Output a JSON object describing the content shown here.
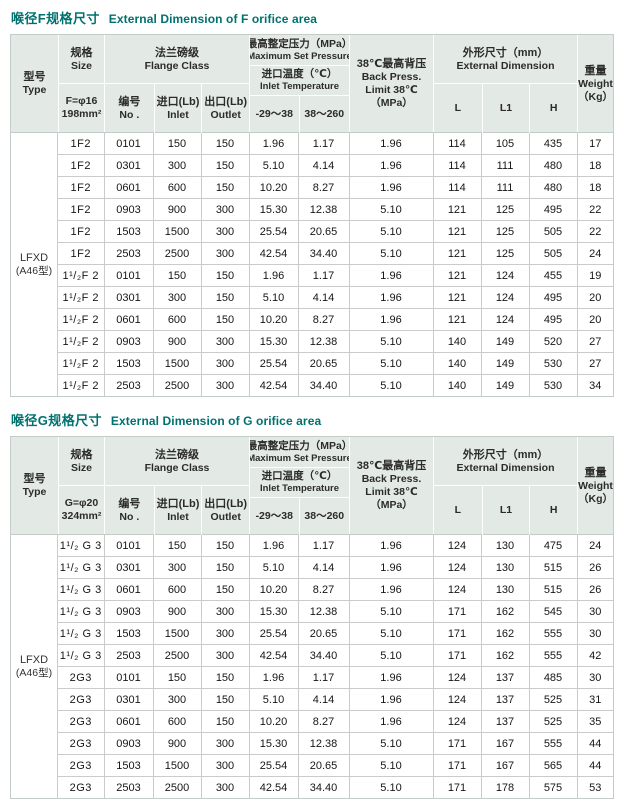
{
  "colors": {
    "title_teal": "#00716f",
    "header_bg": "#e3e9e5",
    "border_light": "#c3ccc6",
    "border_data": "#cbcbcb",
    "text": "#161616"
  },
  "tables": [
    {
      "title_zh": "喉径F规格尺寸",
      "title_en": "External Dimension of F orifice area",
      "header": {
        "type_zh": "型号",
        "type_en": "Type",
        "size_zh": "规格",
        "size_en": "Size",
        "size_spec_1": "F=φ16",
        "size_spec_2": "198mm²",
        "flange_zh": "法兰磅级",
        "flange_en": "Flange Class",
        "no_zh": "编号",
        "no_en": "No .",
        "inlet_zh": "进口(Lb)",
        "inlet_en": "Inlet",
        "outlet_zh": "出口(Lb)",
        "outlet_en": "Outlet",
        "max_set_zh": "最高整定压力（MPa）",
        "max_set_en": "Maximum Set Pressure",
        "inlet_temp_zh": "进口温度（℃）",
        "inlet_temp_en": "Inlet Temperature",
        "temp_range_1": "-29～38",
        "temp_range_2": "38～260",
        "back_press_l1": "38℃最高背压",
        "back_press_l2": "Back Press.",
        "back_press_l3": "Limit 38℃",
        "back_press_l4": "（MPa）",
        "ext_dim_zh": "外形尺寸（mm）",
        "ext_dim_en": "External Dimension",
        "col_l": "L",
        "col_l1": "L1",
        "col_h": "H",
        "weight_zh": "重量",
        "weight_en": "Weight",
        "weight_unit": "（Kg）"
      },
      "model_l1": "LFXD",
      "model_l2": "(A46型)",
      "rows": [
        [
          "1F2",
          "0101",
          "150",
          "150",
          "1.96",
          "1.17",
          "1.96",
          "114",
          "105",
          "435",
          "17"
        ],
        [
          "1F2",
          "0301",
          "300",
          "150",
          "5.10",
          "4.14",
          "1.96",
          "114",
          "111",
          "480",
          "18"
        ],
        [
          "1F2",
          "0601",
          "600",
          "150",
          "10.20",
          "8.27",
          "1.96",
          "114",
          "111",
          "480",
          "18"
        ],
        [
          "1F2",
          "0903",
          "900",
          "300",
          "15.30",
          "12.38",
          "5.10",
          "121",
          "125",
          "495",
          "22"
        ],
        [
          "1F2",
          "1503",
          "1500",
          "300",
          "25.54",
          "20.65",
          "5.10",
          "121",
          "125",
          "505",
          "22"
        ],
        [
          "1F2",
          "2503",
          "2500",
          "300",
          "42.54",
          "34.40",
          "5.10",
          "121",
          "125",
          "505",
          "24"
        ],
        [
          "1¹/₂F 2",
          "0101",
          "150",
          "150",
          "1.96",
          "1.17",
          "1.96",
          "121",
          "124",
          "455",
          "19"
        ],
        [
          "1¹/₂F 2",
          "0301",
          "300",
          "150",
          "5.10",
          "4.14",
          "1.96",
          "121",
          "124",
          "495",
          "20"
        ],
        [
          "1¹/₂F 2",
          "0601",
          "600",
          "150",
          "10.20",
          "8.27",
          "1.96",
          "121",
          "124",
          "495",
          "20"
        ],
        [
          "1¹/₂F 2",
          "0903",
          "900",
          "300",
          "15.30",
          "12.38",
          "5.10",
          "140",
          "149",
          "520",
          "27"
        ],
        [
          "1¹/₂F 2",
          "1503",
          "1500",
          "300",
          "25.54",
          "20.65",
          "5.10",
          "140",
          "149",
          "530",
          "27"
        ],
        [
          "1¹/₂F 2",
          "2503",
          "2500",
          "300",
          "42.54",
          "34.40",
          "5.10",
          "140",
          "149",
          "530",
          "34"
        ]
      ]
    },
    {
      "title_zh": "喉径G规格尺寸",
      "title_en": "External Dimension of G orifice area",
      "header": {
        "type_zh": "型号",
        "type_en": "Type",
        "size_zh": "规格",
        "size_en": "Size",
        "size_spec_1": "G=φ20",
        "size_spec_2": "324mm²",
        "flange_zh": "法兰磅级",
        "flange_en": "Flange Class",
        "no_zh": "编号",
        "no_en": "No .",
        "inlet_zh": "进口(Lb)",
        "inlet_en": "Inlet",
        "outlet_zh": "出口(Lb)",
        "outlet_en": "Outlet",
        "max_set_zh": "最高整定压力（MPa）",
        "max_set_en": "Maximum Set Pressure",
        "inlet_temp_zh": "进口温度（℃）",
        "inlet_temp_en": "Inlet Temperature",
        "temp_range_1": "-29～38",
        "temp_range_2": "38～260",
        "back_press_l1": "38℃最高背压",
        "back_press_l2": "Back Press.",
        "back_press_l3": "Limit 38℃",
        "back_press_l4": "（MPa）",
        "ext_dim_zh": "外形尺寸（mm）",
        "ext_dim_en": "External Dimension",
        "col_l": "L",
        "col_l1": "L1",
        "col_h": "H",
        "weight_zh": "重量",
        "weight_en": "Weight",
        "weight_unit": "（Kg）"
      },
      "model_l1": "LFXD",
      "model_l2": "(A46型)",
      "rows": [
        [
          "1¹/₂ G 3",
          "0101",
          "150",
          "150",
          "1.96",
          "1.17",
          "1.96",
          "124",
          "130",
          "475",
          "24"
        ],
        [
          "1¹/₂ G 3",
          "0301",
          "300",
          "150",
          "5.10",
          "4.14",
          "1.96",
          "124",
          "130",
          "515",
          "26"
        ],
        [
          "1¹/₂ G 3",
          "0601",
          "600",
          "150",
          "10.20",
          "8.27",
          "1.96",
          "124",
          "130",
          "515",
          "26"
        ],
        [
          "1¹/₂ G 3",
          "0903",
          "900",
          "300",
          "15.30",
          "12.38",
          "5.10",
          "171",
          "162",
          "545",
          "30"
        ],
        [
          "1¹/₂ G 3",
          "1503",
          "1500",
          "300",
          "25.54",
          "20.65",
          "5.10",
          "171",
          "162",
          "555",
          "30"
        ],
        [
          "1¹/₂ G 3",
          "2503",
          "2500",
          "300",
          "42.54",
          "34.40",
          "5.10",
          "171",
          "162",
          "555",
          "42"
        ],
        [
          "2G3",
          "0101",
          "150",
          "150",
          "1.96",
          "1.17",
          "1.96",
          "124",
          "137",
          "485",
          "30"
        ],
        [
          "2G3",
          "0301",
          "300",
          "150",
          "5.10",
          "4.14",
          "1.96",
          "124",
          "137",
          "525",
          "31"
        ],
        [
          "2G3",
          "0601",
          "600",
          "150",
          "10.20",
          "8.27",
          "1.96",
          "124",
          "137",
          "525",
          "35"
        ],
        [
          "2G3",
          "0903",
          "900",
          "300",
          "15.30",
          "12.38",
          "5.10",
          "171",
          "167",
          "555",
          "44"
        ],
        [
          "2G3",
          "1503",
          "1500",
          "300",
          "25.54",
          "20.65",
          "5.10",
          "171",
          "167",
          "565",
          "44"
        ],
        [
          "2G3",
          "2503",
          "2500",
          "300",
          "42.54",
          "34.40",
          "5.10",
          "171",
          "178",
          "575",
          "53"
        ]
      ]
    }
  ]
}
